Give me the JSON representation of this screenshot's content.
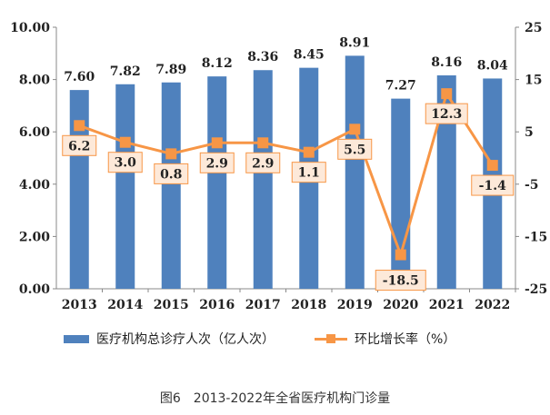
{
  "chart_data": {
    "type": "bar",
    "categories": [
      "2013",
      "2014",
      "2015",
      "2016",
      "2017",
      "2018",
      "2019",
      "2020",
      "2021",
      "2022"
    ],
    "series": [
      {
        "name": "医疗机构总诊疗人次（亿人次）",
        "type": "bar",
        "axis": "left",
        "values": [
          7.6,
          7.82,
          7.89,
          8.12,
          8.36,
          8.45,
          8.91,
          7.27,
          8.16,
          8.04
        ],
        "labels": [
          "7.60",
          "7.82",
          "7.89",
          "8.12",
          "8.36",
          "8.45",
          "8.91",
          "7.27",
          "8.16",
          "8.04"
        ],
        "color": "#4f81bd"
      },
      {
        "name": "环比增长率（%）",
        "type": "line",
        "axis": "right",
        "values": [
          6.2,
          3.0,
          0.8,
          2.9,
          2.9,
          1.1,
          5.5,
          -18.5,
          12.3,
          -1.4
        ],
        "labels": [
          "6.2",
          "3.0",
          "0.8",
          "2.9",
          "2.9",
          "1.1",
          "5.5",
          "-18.5",
          "12.3",
          "-1.4"
        ],
        "color": "#f79646"
      }
    ],
    "y_left": {
      "range": [
        0,
        10
      ],
      "ticks": [
        "0.00",
        "2.00",
        "4.00",
        "6.00",
        "8.00",
        "10.00"
      ]
    },
    "y_right": {
      "range": [
        -25,
        25
      ],
      "ticks": [
        "-25",
        "-15",
        "-5",
        "5",
        "15",
        "25"
      ]
    },
    "legend_position": "bottom",
    "grid": false
  },
  "caption": "图6　2013-2022年全省医疗机构门诊量"
}
